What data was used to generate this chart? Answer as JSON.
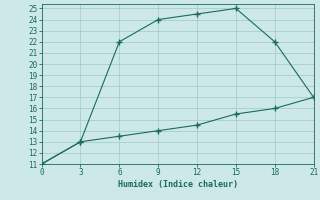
{
  "xlabel": "Humidex (Indice chaleur)",
  "bg_color": "#cce8e8",
  "grid_color": "#a0c8c8",
  "line_color": "#1a6b5a",
  "xlim": [
    0,
    21
  ],
  "ylim": [
    11,
    25.4
  ],
  "xticks": [
    0,
    3,
    6,
    9,
    12,
    15,
    18,
    21
  ],
  "yticks": [
    11,
    12,
    13,
    14,
    15,
    16,
    17,
    18,
    19,
    20,
    21,
    22,
    23,
    24,
    25
  ],
  "line1_x": [
    0,
    3,
    6,
    9,
    12,
    15,
    18,
    21
  ],
  "line1_y": [
    11,
    13,
    22,
    24,
    24.5,
    25,
    22,
    17
  ],
  "line2_x": [
    0,
    3,
    6,
    9,
    12,
    15,
    18,
    21
  ],
  "line2_y": [
    11,
    13,
    13.5,
    14,
    14.5,
    15.5,
    16,
    17
  ],
  "tick_labelsize": 5.5,
  "xlabel_fontsize": 6.0
}
